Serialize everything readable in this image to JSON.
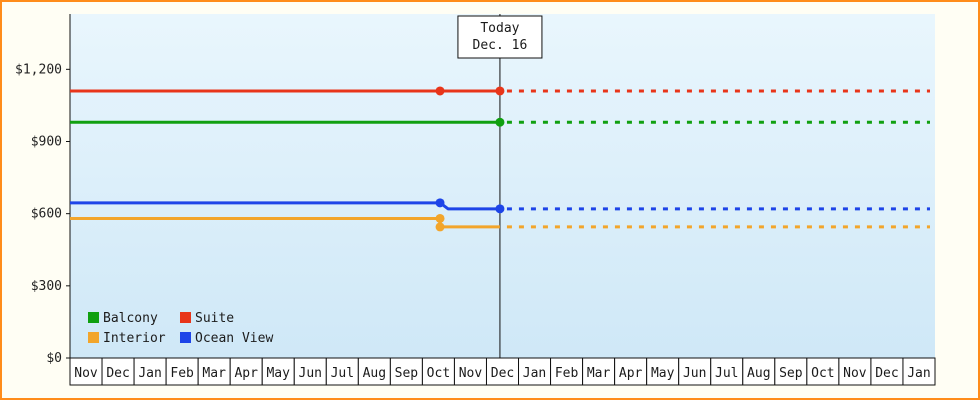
{
  "chart_data": {
    "type": "line",
    "x_categories": [
      "Nov",
      "Dec",
      "Jan",
      "Feb",
      "Mar",
      "Apr",
      "May",
      "Jun",
      "Jul",
      "Aug",
      "Sep",
      "Oct",
      "Nov",
      "Dec",
      "Jan",
      "Feb",
      "Mar",
      "Apr",
      "May",
      "Jun",
      "Jul",
      "Aug",
      "Sep",
      "Oct",
      "Nov",
      "Dec",
      "Jan"
    ],
    "y_axis": {
      "ticks": [
        {
          "value": 0,
          "label": "$0"
        },
        {
          "value": 300,
          "label": "$300"
        },
        {
          "value": 600,
          "label": "$600"
        },
        {
          "value": 900,
          "label": "$900"
        },
        {
          "value": 1200,
          "label": "$1,200"
        }
      ],
      "range": [
        0,
        1430
      ]
    },
    "today": {
      "label_line1": "Today",
      "label_line2": "Dec. 16",
      "month_position": 13.42
    },
    "series": [
      {
        "name": "Suite",
        "color": "#e8351a",
        "history": [
          {
            "m": 0,
            "price": 1110
          },
          {
            "m": 13.42,
            "price": 1110
          }
        ],
        "markers": [
          {
            "m": 11.55,
            "price": 1110
          },
          {
            "m": 13.42,
            "price": 1110
          }
        ],
        "projected_price": 1110
      },
      {
        "name": "Balcony",
        "color": "#10a010",
        "history": [
          {
            "m": 0,
            "price": 980
          },
          {
            "m": 13.42,
            "price": 980
          }
        ],
        "markers": [
          {
            "m": 13.42,
            "price": 980
          }
        ],
        "projected_price": 980
      },
      {
        "name": "Ocean View",
        "color": "#1d44e8",
        "history": [
          {
            "m": 0,
            "price": 645
          },
          {
            "m": 11.55,
            "price": 645
          },
          {
            "m": 11.8,
            "price": 620
          },
          {
            "m": 13.42,
            "price": 620
          }
        ],
        "markers": [
          {
            "m": 11.55,
            "price": 645
          },
          {
            "m": 13.42,
            "price": 620
          }
        ],
        "projected_price": 620
      },
      {
        "name": "Interior",
        "color": "#f2a52b",
        "history": [
          {
            "m": 0,
            "price": 580
          },
          {
            "m": 11.55,
            "price": 580
          },
          {
            "m": 11.55,
            "price": 545
          },
          {
            "m": 13.42,
            "price": 545
          }
        ],
        "markers": [
          {
            "m": 11.55,
            "price": 580
          },
          {
            "m": 11.55,
            "price": 545
          }
        ],
        "projected_price": 545
      }
    ],
    "legend": {
      "rows": [
        [
          "Balcony",
          "Suite"
        ],
        [
          "Interior",
          "Ocean View"
        ]
      ]
    },
    "grid": false,
    "legend_position": "bottom-left-inside",
    "plot_background": [
      "#e9f6fd",
      "#cfe8f7"
    ],
    "frame_border_color": "#ff8c1a",
    "page_background": "#fffef4",
    "axis_color": "#111111",
    "tick_label_color": "#222222",
    "month_cell_fill": "#ffffff",
    "today_box_fill": "#ffffff"
  }
}
